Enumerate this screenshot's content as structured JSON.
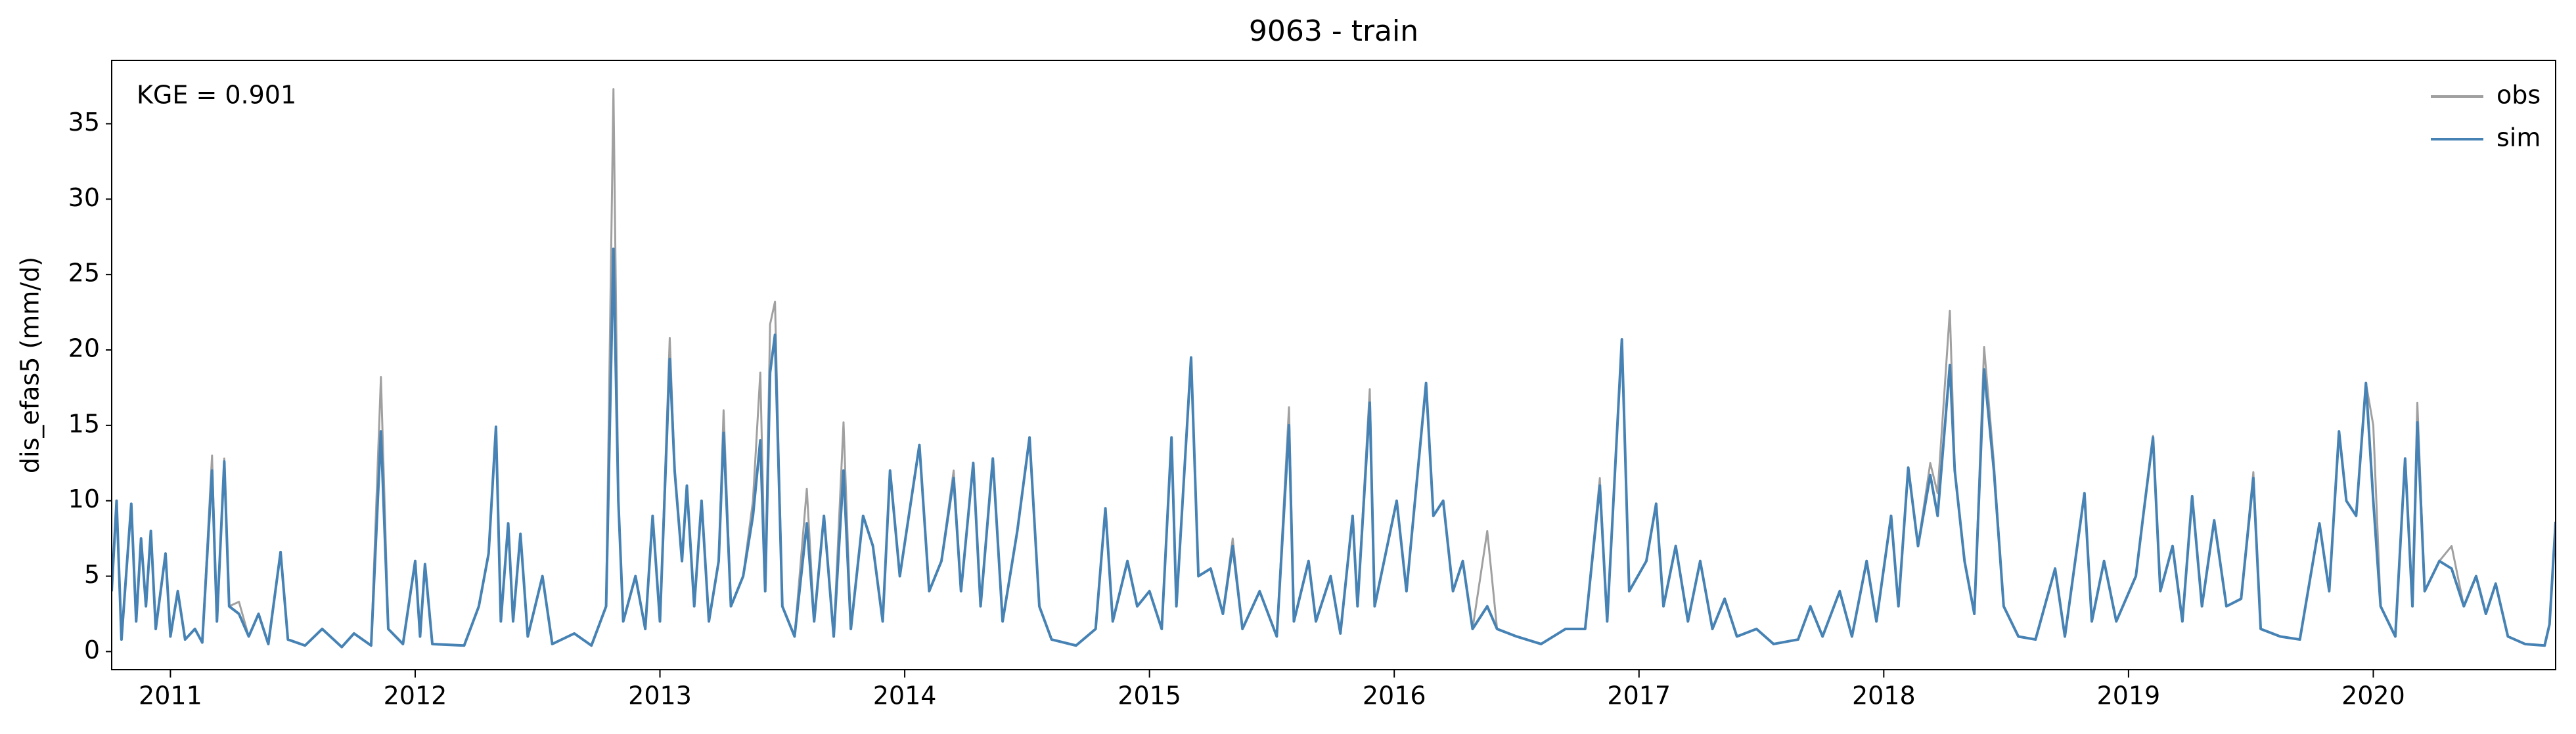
{
  "chart_data": {
    "type": "line",
    "title": "9063 - train",
    "ylabel": "dis_efas5 (mm/d)",
    "annotation": "KGE = 0.901",
    "legend": "upper right",
    "grid": false,
    "xlim": [
      2010.76,
      2020.745
    ],
    "xticks": [
      2011,
      2012,
      2013,
      2014,
      2015,
      2016,
      2017,
      2018,
      2019,
      2020
    ],
    "ylim": [
      -1.2,
      39.2
    ],
    "yticks": [
      0,
      5,
      10,
      15,
      20,
      25,
      30,
      35
    ],
    "x": [
      2010.76,
      2010.78,
      2010.8,
      2010.84,
      2010.86,
      2010.88,
      2010.9,
      2010.92,
      2010.94,
      2010.98,
      2011,
      2011.03,
      2011.06,
      2011.1,
      2011.13,
      2011.17,
      2011.19,
      2011.22,
      2011.24,
      2011.28,
      2011.32,
      2011.36,
      2011.4,
      2011.45,
      2011.48,
      2011.55,
      2011.62,
      2011.7,
      2011.75,
      2011.82,
      2011.86,
      2011.89,
      2011.95,
      2012,
      2012.02,
      2012.04,
      2012.07,
      2012.2,
      2012.26,
      2012.3,
      2012.33,
      2012.35,
      2012.38,
      2012.4,
      2012.43,
      2012.46,
      2012.52,
      2012.56,
      2012.65,
      2012.72,
      2012.78,
      2012.81,
      2012.83,
      2012.85,
      2012.9,
      2012.94,
      2012.97,
      2013,
      2013.04,
      2013.06,
      2013.09,
      2013.11,
      2013.14,
      2013.17,
      2013.2,
      2013.24,
      2013.26,
      2013.29,
      2013.34,
      2013.38,
      2013.41,
      2013.43,
      2013.45,
      2013.47,
      2013.5,
      2013.55,
      2013.6,
      2013.63,
      2013.67,
      2013.71,
      2013.75,
      2013.78,
      2013.83,
      2013.87,
      2013.91,
      2013.94,
      2013.98,
      2014.06,
      2014.1,
      2014.15,
      2014.2,
      2014.23,
      2014.28,
      2014.31,
      2014.36,
      2014.4,
      2014.46,
      2014.51,
      2014.55,
      2014.6,
      2014.7,
      2014.78,
      2014.82,
      2014.85,
      2014.91,
      2014.95,
      2015,
      2015.05,
      2015.09,
      2015.11,
      2015.17,
      2015.2,
      2015.25,
      2015.3,
      2015.34,
      2015.38,
      2015.45,
      2015.52,
      2015.57,
      2015.59,
      2015.65,
      2015.68,
      2015.74,
      2015.78,
      2015.83,
      2015.85,
      2015.9,
      2015.92,
      2016.01,
      2016.05,
      2016.13,
      2016.16,
      2016.2,
      2016.24,
      2016.28,
      2016.32,
      2016.38,
      2016.42,
      2016.5,
      2016.6,
      2016.7,
      2016.78,
      2016.84,
      2016.87,
      2016.93,
      2016.96,
      2017.03,
      2017.07,
      2017.1,
      2017.15,
      2017.2,
      2017.25,
      2017.3,
      2017.35,
      2017.4,
      2017.48,
      2017.55,
      2017.65,
      2017.7,
      2017.75,
      2017.82,
      2017.87,
      2017.93,
      2017.97,
      2018.03,
      2018.06,
      2018.1,
      2018.14,
      2018.19,
      2018.22,
      2018.27,
      2018.29,
      2018.33,
      2018.37,
      2018.41,
      2018.45,
      2018.49,
      2018.55,
      2018.62,
      2018.7,
      2018.74,
      2018.82,
      2018.85,
      2018.9,
      2018.95,
      2019.03,
      2019.06,
      2019.1,
      2019.13,
      2019.18,
      2019.22,
      2019.26,
      2019.3,
      2019.35,
      2019.4,
      2019.46,
      2019.51,
      2019.54,
      2019.62,
      2019.7,
      2019.78,
      2019.82,
      2019.86,
      2019.89,
      2019.93,
      2019.97,
      2020,
      2020.03,
      2020.09,
      2020.13,
      2020.16,
      2020.18,
      2020.21,
      2020.27,
      2020.32,
      2020.37,
      2020.42,
      2020.46,
      2020.5,
      2020.55,
      2020.62,
      2020.7,
      2020.72,
      2020.745
    ],
    "series": [
      {
        "name": "obs",
        "color": "#a0a0a0",
        "values": [
          4,
          10,
          0.8,
          9.8,
          2,
          7.5,
          3,
          8,
          1.5,
          6.5,
          1,
          4,
          0.8,
          1.5,
          0.6,
          13,
          2,
          12.8,
          3,
          3.3,
          1,
          2.5,
          0.5,
          6.6,
          0.8,
          0.4,
          1.5,
          0.3,
          1.2,
          0.4,
          18.2,
          1.5,
          0.5,
          6,
          1,
          5.8,
          0.5,
          0.4,
          3,
          6.5,
          14.9,
          2,
          8.5,
          2,
          7.8,
          1,
          5,
          0.5,
          1.2,
          0.4,
          3,
          37.3,
          10,
          2,
          5,
          1.5,
          9,
          2,
          20.8,
          12,
          6,
          11,
          3,
          10,
          2,
          6,
          16,
          3,
          5,
          10,
          18.5,
          4,
          21.7,
          23.2,
          3,
          1,
          10.8,
          2,
          9,
          1,
          15.2,
          1.5,
          9,
          7,
          2,
          12,
          5,
          13.7,
          4,
          6,
          12,
          4,
          12.5,
          3,
          12.8,
          2,
          8,
          14.2,
          3,
          0.8,
          0.4,
          1.5,
          9.5,
          2,
          6,
          3,
          4,
          1.5,
          14.2,
          3,
          19.5,
          5,
          5.5,
          2.5,
          7.5,
          1.5,
          4,
          1,
          16.2,
          2,
          6,
          2,
          5,
          1.2,
          9,
          3,
          17.4,
          3,
          10,
          4,
          17.8,
          9,
          10,
          4,
          6,
          1.5,
          8,
          1.5,
          1,
          0.5,
          1.5,
          1.5,
          11.5,
          2,
          20.7,
          4,
          6,
          9.8,
          3,
          7,
          2,
          6,
          1.5,
          3.5,
          1,
          1.5,
          0.5,
          0.8,
          3,
          1,
          4,
          1,
          6,
          2,
          9,
          3,
          12.2,
          7,
          12.5,
          10.5,
          22.6,
          12,
          6,
          2.5,
          20.2,
          12.5,
          3,
          1,
          0.8,
          5.5,
          1,
          10.5,
          2,
          6,
          2,
          5,
          9,
          14.3,
          4,
          7,
          2,
          10.3,
          3,
          8.7,
          3,
          3.5,
          11.9,
          1.5,
          1,
          0.8,
          8.5,
          4,
          14.6,
          10,
          9,
          17.8,
          15,
          3,
          1,
          12.8,
          3,
          16.5,
          4,
          6,
          7,
          3,
          5,
          2.5,
          4.5,
          1,
          0.5,
          0.4,
          1.8,
          8.6
        ]
      },
      {
        "name": "sim",
        "color": "#4682b4",
        "values": [
          4,
          10,
          0.8,
          9.8,
          2,
          7.5,
          3,
          8,
          1.5,
          6.5,
          1,
          4,
          0.8,
          1.5,
          0.6,
          12,
          2,
          12.6,
          3,
          2.5,
          1,
          2.5,
          0.5,
          6.6,
          0.8,
          0.4,
          1.5,
          0.3,
          1.2,
          0.4,
          14.6,
          1.5,
          0.5,
          6,
          1,
          5.8,
          0.5,
          0.4,
          3,
          6.5,
          14.9,
          2,
          8.5,
          2,
          7.8,
          1,
          5,
          0.5,
          1.2,
          0.4,
          3,
          26.7,
          10,
          2,
          5,
          1.5,
          9,
          2,
          19.4,
          12,
          6,
          11,
          3,
          10,
          2,
          6,
          14.5,
          3,
          5,
          9,
          14,
          4,
          18.5,
          21,
          3,
          1,
          8.5,
          2,
          9,
          1,
          12,
          1.5,
          9,
          7,
          2,
          12,
          5,
          13.7,
          4,
          6,
          11.5,
          4,
          12.5,
          3,
          12.8,
          2,
          8,
          14.2,
          3,
          0.8,
          0.4,
          1.5,
          9.5,
          2,
          6,
          3,
          4,
          1.5,
          14.2,
          3,
          19.5,
          5,
          5.5,
          2.5,
          7,
          1.5,
          4,
          1,
          15,
          2,
          6,
          2,
          5,
          1.2,
          9,
          3,
          16.5,
          3,
          10,
          4,
          17.8,
          9,
          10,
          4,
          6,
          1.5,
          3,
          1.5,
          1,
          0.5,
          1.5,
          1.5,
          11,
          2,
          20.7,
          4,
          6,
          9.8,
          3,
          7,
          2,
          6,
          1.5,
          3.5,
          1,
          1.5,
          0.5,
          0.8,
          3,
          1,
          4,
          1,
          6,
          2,
          9,
          3,
          12.2,
          7,
          11.7,
          9,
          19,
          12,
          6,
          2.5,
          18.7,
          12,
          3,
          1,
          0.8,
          5.5,
          1,
          10.5,
          2,
          6,
          2,
          5,
          9,
          14.2,
          4,
          7,
          2,
          10.3,
          3,
          8.7,
          3,
          3.5,
          11.5,
          1.5,
          1,
          0.8,
          8.5,
          4,
          14.6,
          10,
          9,
          17.8,
          10,
          3,
          1,
          12.8,
          3,
          15.2,
          4,
          6,
          5.5,
          3,
          5,
          2.5,
          4.5,
          1,
          0.5,
          0.4,
          1.8,
          8.6
        ]
      }
    ]
  }
}
